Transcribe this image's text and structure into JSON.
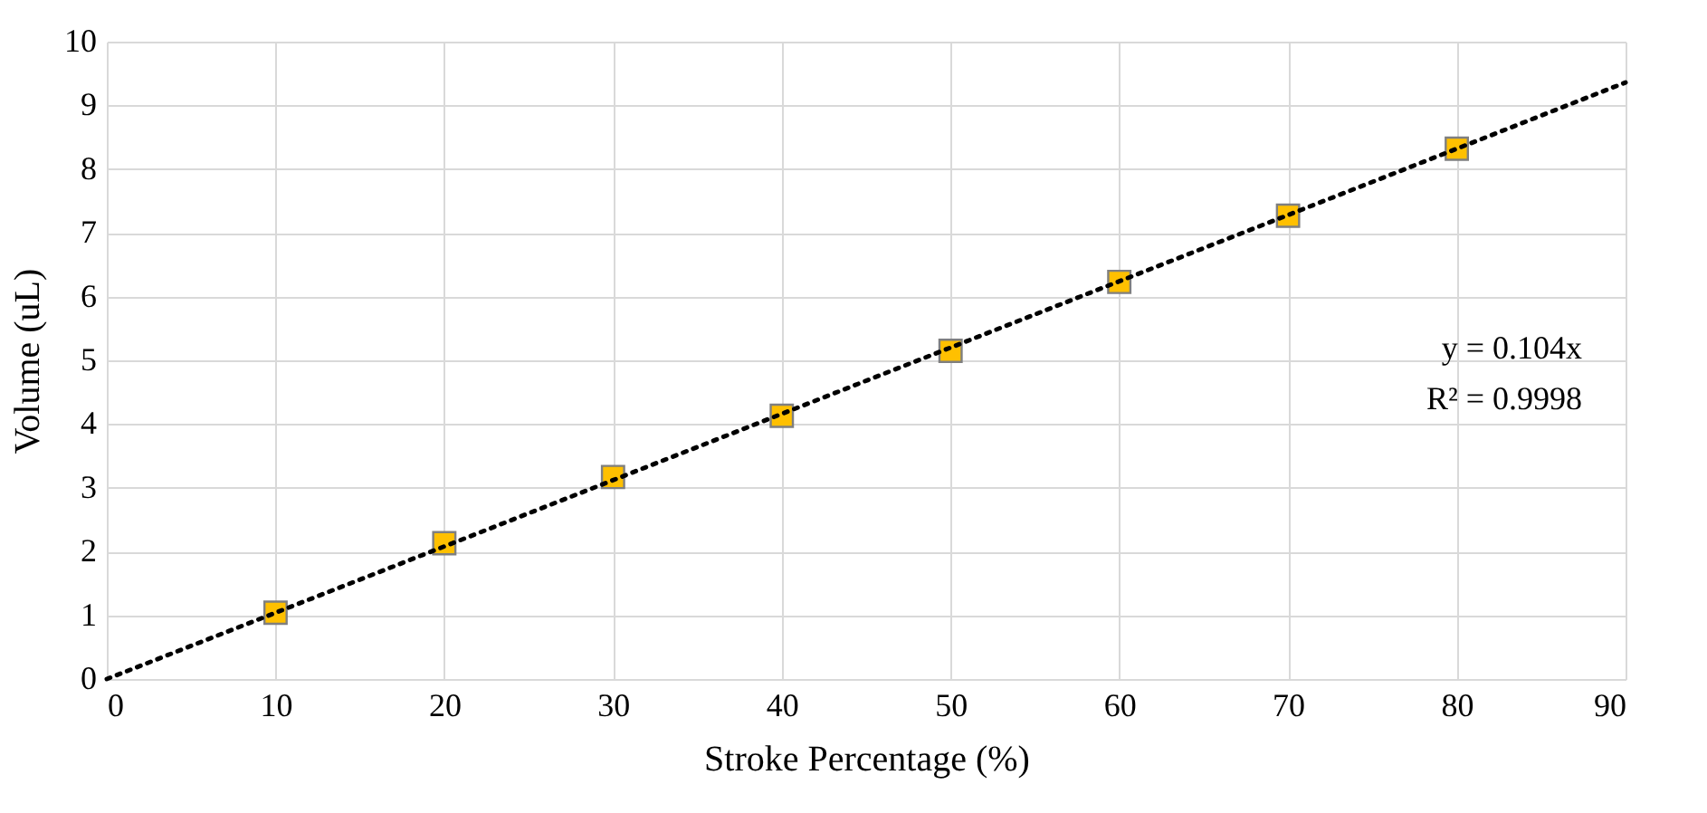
{
  "chart_data": {
    "type": "scatter",
    "xlabel": "Stroke Percentage (%)",
    "ylabel": "Volume (uL)",
    "xlim": [
      0,
      90
    ],
    "xticks": [
      0,
      10,
      20,
      30,
      40,
      50,
      60,
      70,
      80,
      90
    ],
    "ylim": [
      0,
      10
    ],
    "yticks": [
      0,
      1,
      2,
      3,
      4,
      5,
      6,
      7,
      8,
      9,
      10
    ],
    "grid": true,
    "series": [
      {
        "marker": "square",
        "color": "#ffc000",
        "x": [
          10,
          20,
          30,
          40,
          50,
          60,
          70,
          80
        ],
        "values": [
          1.04,
          2.13,
          3.17,
          4.13,
          5.15,
          6.23,
          7.27,
          8.32
        ]
      },
      {
        "type": "line",
        "color": "#000000",
        "line_style": "dotted",
        "x": [
          0,
          90
        ],
        "values": [
          0,
          9.36
        ]
      }
    ],
    "annotations": [
      "y = 0.104x",
      "R² = 0.9998"
    ]
  }
}
